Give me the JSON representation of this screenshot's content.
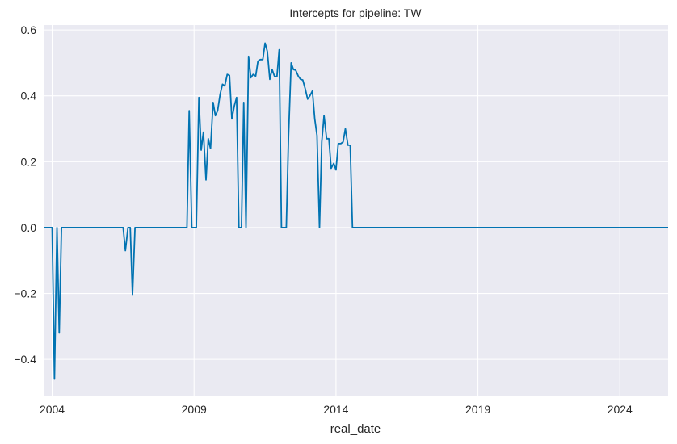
{
  "chart_data": {
    "type": "line",
    "title": "Intercepts for pipeline: TW",
    "xlabel": "real_date",
    "ylabel": "",
    "xlim": [
      2003.7,
      2025.7
    ],
    "ylim": [
      -0.51,
      0.615
    ],
    "grid": true,
    "legend": null,
    "line_color": "#0173b2",
    "background_color": "#eaeaf2",
    "grid_color": "#ffffff",
    "x_ticks": [
      {
        "value": 2004,
        "label": "2004"
      },
      {
        "value": 2009,
        "label": "2009"
      },
      {
        "value": 2014,
        "label": "2014"
      },
      {
        "value": 2019,
        "label": "2019"
      },
      {
        "value": 2024,
        "label": "2024"
      }
    ],
    "y_ticks": [
      {
        "value": 0.6,
        "label": "0.6"
      },
      {
        "value": 0.4,
        "label": "0.4"
      },
      {
        "value": 0.2,
        "label": "0.2"
      },
      {
        "value": 0.0,
        "label": "0.0"
      },
      {
        "value": -0.2,
        "label": "−0.2"
      },
      {
        "value": -0.4,
        "label": "−0.4"
      }
    ],
    "series": [
      {
        "name": "TW intercept",
        "x": [
          2003.7,
          2004.0,
          2004.08,
          2004.17,
          2004.25,
          2004.33,
          2004.42,
          2004.5,
          2005.0,
          2006.0,
          2006.5,
          2006.58,
          2006.67,
          2006.75,
          2006.83,
          2006.92,
          2007.0,
          2008.0,
          2008.75,
          2008.83,
          2008.92,
          2009.0,
          2009.08,
          2009.17,
          2009.25,
          2009.33,
          2009.42,
          2009.5,
          2009.58,
          2009.67,
          2009.75,
          2009.83,
          2009.92,
          2010.0,
          2010.08,
          2010.17,
          2010.25,
          2010.33,
          2010.42,
          2010.5,
          2010.58,
          2010.67,
          2010.75,
          2010.83,
          2010.92,
          2011.0,
          2011.08,
          2011.17,
          2011.25,
          2011.33,
          2011.42,
          2011.5,
          2011.58,
          2011.67,
          2011.75,
          2011.83,
          2011.92,
          2012.0,
          2012.08,
          2012.17,
          2012.25,
          2012.33,
          2012.42,
          2012.5,
          2012.58,
          2012.67,
          2012.75,
          2012.83,
          2012.92,
          2013.0,
          2013.08,
          2013.17,
          2013.25,
          2013.33,
          2013.42,
          2013.5,
          2013.58,
          2013.67,
          2013.75,
          2013.83,
          2013.92,
          2014.0,
          2014.08,
          2014.17,
          2014.25,
          2014.33,
          2014.42,
          2014.5,
          2014.58,
          2014.67,
          2014.75,
          2014.83,
          2014.92,
          2015.0,
          2020.0,
          2025.7
        ],
        "values": [
          0.0,
          0.0,
          -0.46,
          0.0,
          -0.32,
          0.0,
          0.0,
          0.0,
          0.0,
          0.0,
          0.0,
          -0.07,
          0.0,
          0.0,
          -0.205,
          0.0,
          0.0,
          0.0,
          0.0,
          0.355,
          0.0,
          0.0,
          0.0,
          0.395,
          0.235,
          0.29,
          0.145,
          0.27,
          0.24,
          0.38,
          0.34,
          0.355,
          0.405,
          0.435,
          0.43,
          0.465,
          0.462,
          0.33,
          0.37,
          0.395,
          0.0,
          0.0,
          0.38,
          0.0,
          0.52,
          0.455,
          0.465,
          0.46,
          0.505,
          0.51,
          0.51,
          0.56,
          0.535,
          0.45,
          0.48,
          0.46,
          0.458,
          0.54,
          0.0,
          0.0,
          0.0,
          0.28,
          0.5,
          0.48,
          0.478,
          0.46,
          0.45,
          0.448,
          0.42,
          0.39,
          0.4,
          0.415,
          0.33,
          0.28,
          0.0,
          0.26,
          0.34,
          0.27,
          0.27,
          0.18,
          0.195,
          0.175,
          0.255,
          0.255,
          0.26,
          0.3,
          0.25,
          0.25,
          0.0,
          0.0,
          0.0,
          0.0,
          0.0,
          0.0,
          0.0,
          0.0
        ]
      }
    ]
  }
}
